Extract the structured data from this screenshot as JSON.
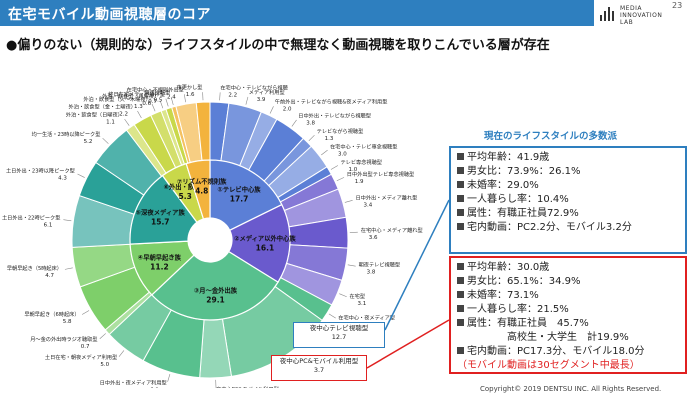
{
  "header": {
    "title": "在宅モバイル動画視聴層のコア",
    "page_number": "23",
    "logo_lines": [
      "MEDIA",
      "INNOVATION",
      "LAB"
    ],
    "accent_color": "#2e7fbf"
  },
  "headline": "●偏りのない（規則的な）ライフスタイルの中で無理なく動画視聴を取りこんでいる層が存在",
  "chart_data": {
    "type": "pie",
    "inner_ring": [
      {
        "label": "①テレビ中心族",
        "value": 17.7,
        "color": "#5b7fd6"
      },
      {
        "label": "②メディア以外中心族",
        "value": 16.1,
        "color": "#6a5acd"
      },
      {
        "label": "③月～金外出族",
        "value": 29.1,
        "color": "#58c08e"
      },
      {
        "label": "④早朝早起き族",
        "value": 11.2,
        "color": "#7ecf6a"
      },
      {
        "label": "⑤深夜メディア族",
        "value": 15.7,
        "color": "#2aa198"
      },
      {
        "label": "⑥外出・飲食族",
        "value": 5.3,
        "color": "#c9d84a"
      },
      {
        "label": "⑦リズム不規則族",
        "value": 4.8,
        "color": "#f3b33d"
      }
    ],
    "outer_ring": [
      {
        "label": "在宅中心・テレビながら視聴",
        "value": 2.2
      },
      {
        "label": "メディア利用型",
        "value": 3.9
      },
      {
        "label": "午前外出・テレビながら視聴&夜メディア利用型",
        "value": 2.0
      },
      {
        "label": "日中外出・テレビながら視聴型",
        "value": 3.8
      },
      {
        "label": "テレビながら視聴型",
        "value": 1.3
      },
      {
        "label": "在宅中心・テレビ専念視聴型",
        "value": 3.0
      },
      {
        "label": "テレビ専念視聴型",
        "value": 1.0
      },
      {
        "label": "日中外出型テレビ専念視聴型",
        "value": 1.9
      },
      {
        "label": "日中外出・メディア離れ型",
        "value": 3.4
      },
      {
        "label": "在宅中心・メディア離れ型",
        "value": 3.6
      },
      {
        "label": "朝夜テレビ視聴型",
        "value": 3.8
      },
      {
        "label": "在宅型",
        "value": 3.1
      },
      {
        "label": "在宅中心・夜メディア型",
        "value": 2.1
      },
      {
        "label": "夜中心テレビ視聴型",
        "value": 12.7
      },
      {
        "label": "夜中心PC&モバイル利用型",
        "value": 3.7
      },
      {
        "label": "日中外出・夜メディア利用型",
        "value": 6.9
      },
      {
        "label": "土日在宅・朝夜メディア利用型",
        "value": 5.0
      },
      {
        "label": "月～金の外出時ラジオ聴取型",
        "value": 0.7
      },
      {
        "label": "早朝早起き（6時起床）",
        "value": 5.8
      },
      {
        "label": "早朝早起き（5時起床）",
        "value": 4.7
      },
      {
        "label": "土日外出・22時ピーク型",
        "value": 6.1
      },
      {
        "label": "土日外出・23時以降ピーク型",
        "value": 4.3
      },
      {
        "label": "均一生活・23時以降ピーク型",
        "value": 5.2
      },
      {
        "label": "外泊・飲食型（日曜夜）",
        "value": 1.1
      },
      {
        "label": "外泊・飲食型（金・土曜夜）",
        "value": 2.2
      },
      {
        "label": "外泊・飲食型（火～木曜夜）",
        "value": 1.3
      },
      {
        "label": "外泊・飲食型（月曜夜）",
        "value": 0.6
      },
      {
        "label": "終日在宅メディア漬け型",
        "value": 0.7
      },
      {
        "label": "朝夜逆転型",
        "value": 0.5
      },
      {
        "label": "在宅中心・不規則外出型",
        "value": 2.4
      },
      {
        "label": "夜更かし型",
        "value": 1.6
      }
    ]
  },
  "highlight_tags": {
    "blue": {
      "label": "夜中心テレビ視聴型",
      "value": "12.7"
    },
    "red": {
      "label": "夜中心PC&モバイル利用型",
      "value": "3.7"
    }
  },
  "box_title": "現在のライフスタイルの多数派",
  "blue_box": [
    "平均年齢：41.9歳",
    "男女比：73.9%：26.1%",
    "未婚率：29.0%",
    "一人暮らし率：10.4%",
    "属性：有職正社員72.9%",
    "宅内動画：PC2.2分、モバイル3.2分"
  ],
  "red_box": {
    "lines": [
      "平均年齢：30.0歳",
      "男女比：65.1%：34.9%",
      "未婚率：73.1%",
      "一人暮らし率：21.5%",
      "属性：有職正社員　45.7%"
    ],
    "indent_line": "高校生・大学生　計19.9%",
    "last_line": "宅内動画：PC17.3分、モバイル18.0分",
    "note": "（モバイル動画は30セグメント中最長）"
  },
  "copyright": "Copyright© 2019 DENTSU INC. All Rights Reserved."
}
